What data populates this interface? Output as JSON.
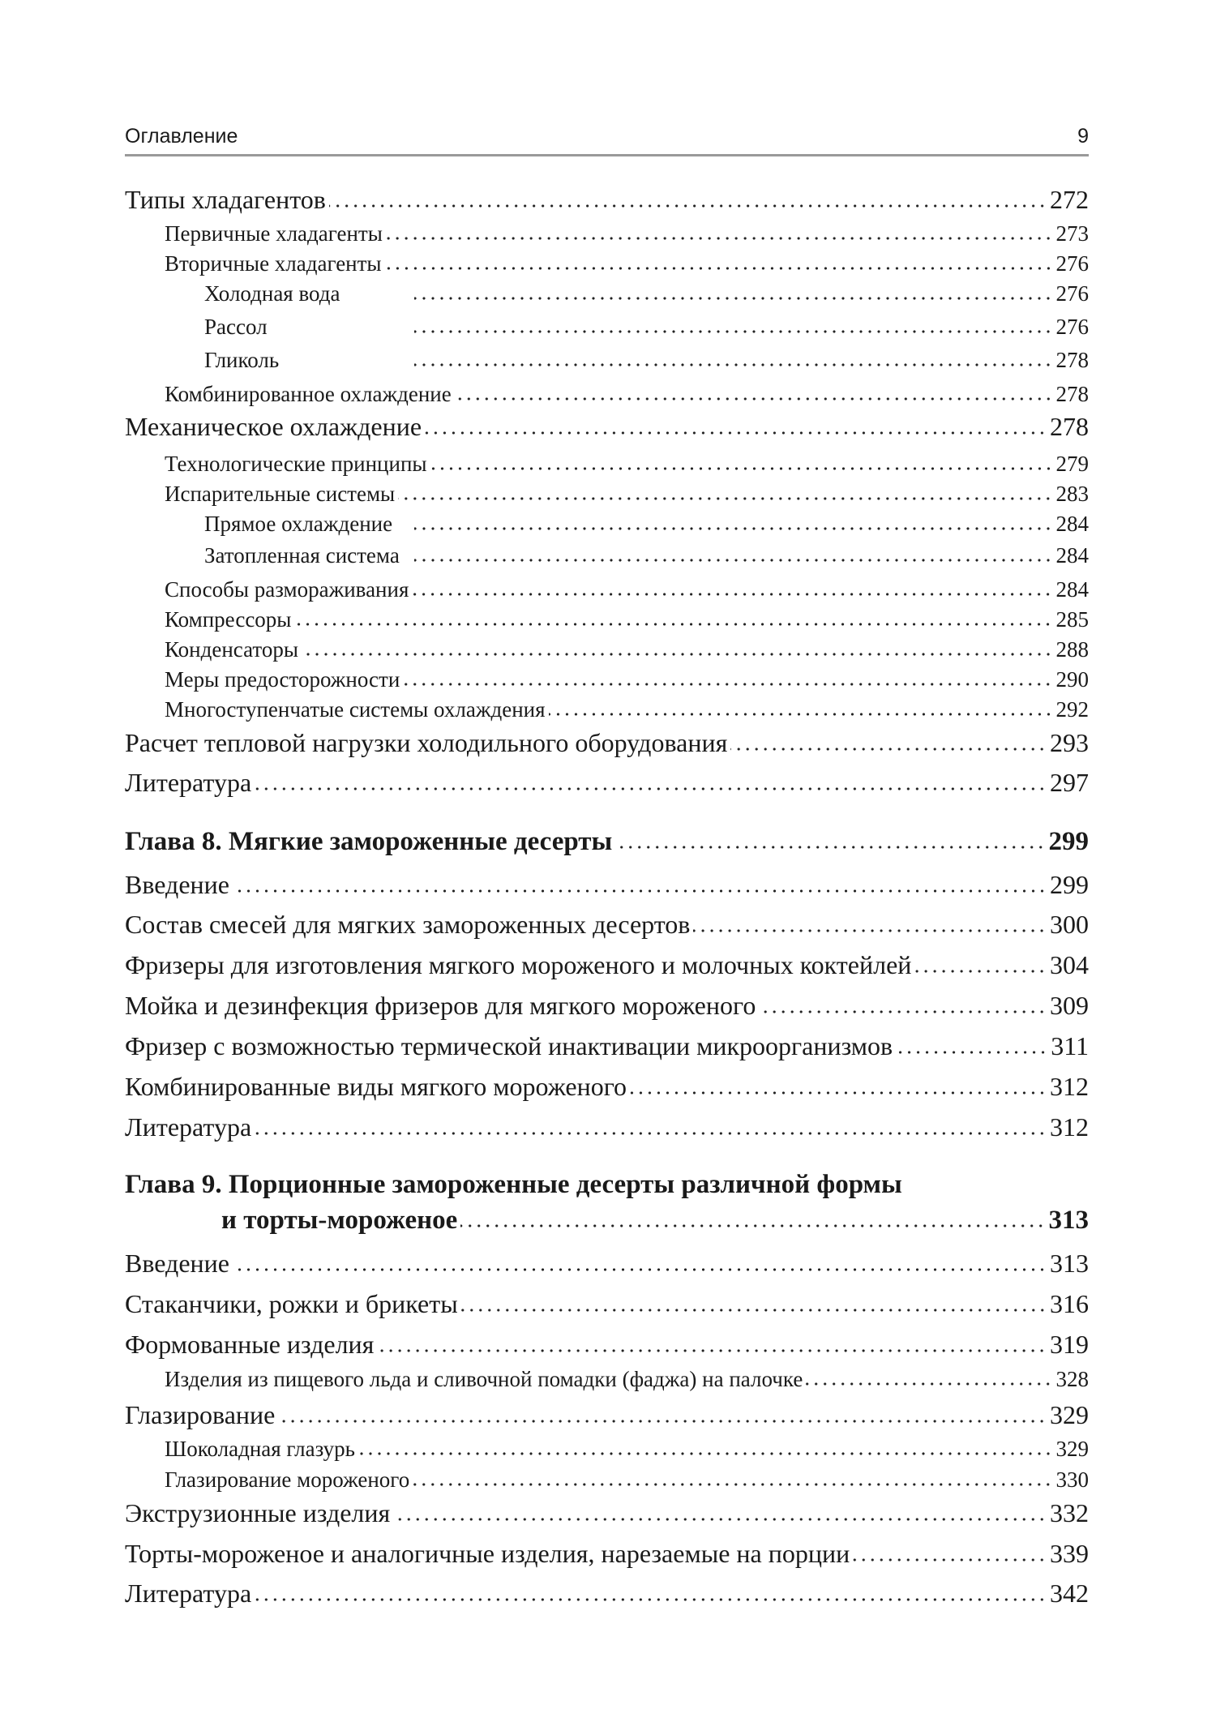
{
  "header": {
    "title": "Оглавление",
    "page_number": "9"
  },
  "entries": [
    {
      "text": "Типы хладагентов",
      "page": "272",
      "level": 1
    },
    {
      "text": "Первичные хладагенты",
      "page": "273",
      "level": 2
    },
    {
      "text": "Вторичные хладагенты",
      "page": "276",
      "level": 2
    },
    {
      "text": "Холодная вода",
      "page": "276",
      "level": 3
    },
    {
      "text": "Рассол",
      "page": "276",
      "level": 3
    },
    {
      "text": "Гликоль",
      "page": "278",
      "level": 3
    },
    {
      "text": "Комбинированное охлаждение",
      "page": "278",
      "level": 2
    },
    {
      "text": "Механическое охлаждение",
      "page": "278",
      "level": 1
    },
    {
      "text": "Технологические принципы",
      "page": "279",
      "level": 2
    },
    {
      "text": "Испарительные системы",
      "page": "283",
      "level": 2
    },
    {
      "text": "Прямое охлаждение",
      "page": "284",
      "level": 3
    },
    {
      "text": "Затопленная система",
      "page": "284",
      "level": 3
    },
    {
      "text": "Способы размораживания",
      "page": "284",
      "level": 2
    },
    {
      "text": "Компрессоры",
      "page": "285",
      "level": 2
    },
    {
      "text": "Конденсаторы",
      "page": "288",
      "level": 2
    },
    {
      "text": "Меры предосторожности",
      "page": "290",
      "level": 2
    },
    {
      "text": "Многоступенчатые системы охлаждения",
      "page": "292",
      "level": 2
    },
    {
      "text": "Расчет тепловой нагрузки холодильного оборудования",
      "page": "293",
      "level": 1
    },
    {
      "text": "Литература",
      "page": "297",
      "level": 1
    },
    {
      "text": "Глава 8. Мягкие замороженные десерты",
      "page": "299",
      "level": 0
    },
    {
      "text": "Введение",
      "page": "299",
      "level": 1
    },
    {
      "text": "Состав смесей для мягких замороженных десертов",
      "page": "300",
      "level": 1
    },
    {
      "text": "Фризеры для изготовления мягкого мороженого и молочных коктейлей",
      "page": "304",
      "level": 1
    },
    {
      "text": "Мойка и дезинфекция фризеров для мягкого мороженого",
      "page": "309",
      "level": 1
    },
    {
      "text": "Фризер с возможностью термической инактивации микроорганизмов",
      "page": "311",
      "level": 1
    },
    {
      "text": "Комбинированные виды мягкого мороженого",
      "page": "312",
      "level": 1
    },
    {
      "text": "Литература",
      "page": "312",
      "level": 1
    },
    {
      "text": "и торты-мороженое",
      "page": "313",
      "level": 0,
      "title_first_line": "Глава 9. Порционные замороженные десерты различной формы"
    },
    {
      "text": "Введение",
      "page": "313",
      "level": 1
    },
    {
      "text": "Стаканчики, рожки и брикеты",
      "page": "316",
      "level": 1
    },
    {
      "text": "Формованные изделия",
      "page": "319",
      "level": 1
    },
    {
      "text": "Изделия из пищевого льда и сливочной помадки (фаджа) на палочке",
      "page": "328",
      "level": 2
    },
    {
      "text": "Глазирование",
      "page": "329",
      "level": 1
    },
    {
      "text": "Шоколадная глазурь",
      "page": "329",
      "level": 2
    },
    {
      "text": "Глазирование мороженого",
      "page": "330",
      "level": 2
    },
    {
      "text": "Экструзионные изделия",
      "page": "332",
      "level": 1
    },
    {
      "text": "Торты-мороженое и аналогичные изделия, нарезаемые на порции",
      "page": "339",
      "level": 1
    },
    {
      "text": "Литература",
      "page": "342",
      "level": 1
    }
  ]
}
